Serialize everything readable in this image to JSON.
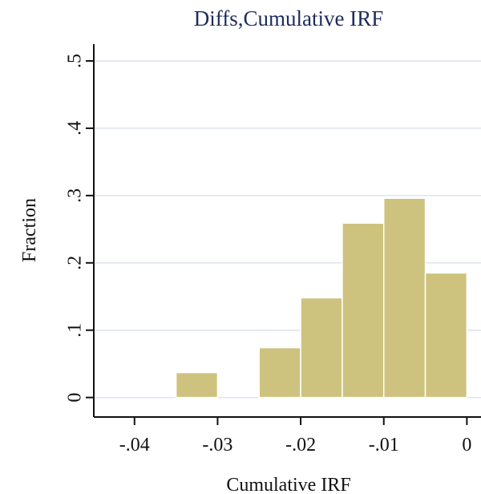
{
  "chart_data": {
    "type": "histogram",
    "title": "Diffs,Cumulative IRF",
    "xlabel": "Cumulative IRF",
    "ylabel": "Fraction",
    "bins": [
      -0.035,
      -0.03,
      -0.025,
      -0.02,
      -0.015,
      -0.01,
      -0.005,
      0
    ],
    "values": [
      0.037,
      0,
      0.074,
      0.148,
      0.259,
      0.296,
      0.185
    ],
    "color": "#cdc37e",
    "xlim": [
      -0.0449,
      0.0017
    ],
    "ylim": [
      -0.029,
      0.525
    ],
    "xticks": [
      {
        "value": -0.04,
        "label": "-.04"
      },
      {
        "value": -0.03,
        "label": "-.03"
      },
      {
        "value": -0.02,
        "label": "-.02"
      },
      {
        "value": -0.01,
        "label": "-.01"
      },
      0
    ],
    "yticks": [
      0,
      {
        "value": 0.1,
        "label": ".1"
      },
      {
        "value": 0.2,
        "label": ".2"
      },
      {
        "value": 0.3,
        "label": ".3"
      },
      {
        "value": 0.4,
        "label": ".4"
      },
      {
        "value": 0.5,
        "label": ".5"
      }
    ],
    "grid": true
  }
}
